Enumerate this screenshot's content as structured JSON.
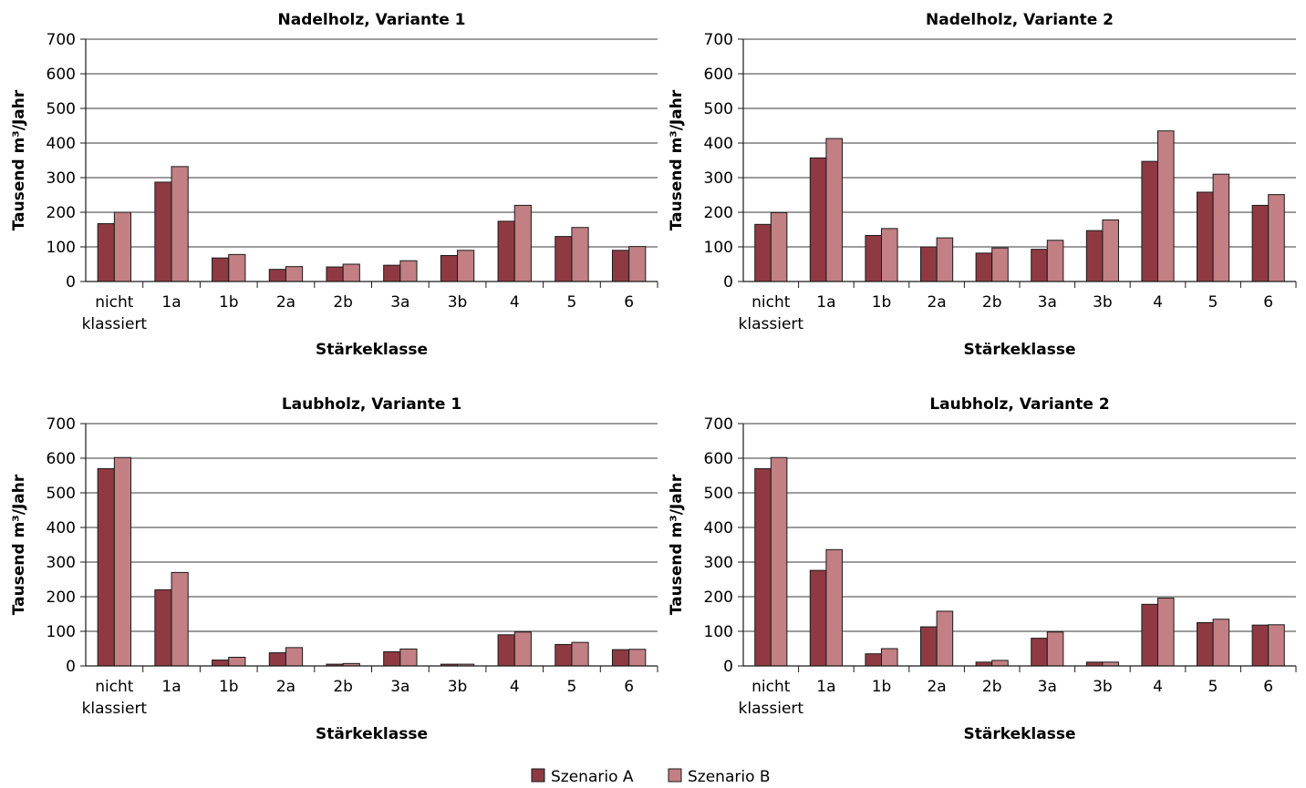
{
  "colors": {
    "series_a": "#8f3a43",
    "series_b": "#c27f84",
    "grid": "#3a3a3a"
  },
  "legend": [
    {
      "label": "Szenario A",
      "color": "#8f3a43"
    },
    {
      "label": "Szenario B",
      "color": "#c27f84"
    }
  ],
  "chart_data": [
    {
      "type": "bar",
      "title": "Nadelholz, Variante 1",
      "xlabel": "Stärkeklasse",
      "ylabel": "Tausend m³/Jahr",
      "ylim": [
        0,
        700
      ],
      "yticks": [
        0,
        100,
        200,
        300,
        400,
        500,
        600,
        700
      ],
      "grid": true,
      "categories": [
        "nicht klassiert",
        "1a",
        "1b",
        "2a",
        "2b",
        "3a",
        "3b",
        "4",
        "5",
        "6"
      ],
      "series": [
        {
          "name": "Szenario A",
          "values": [
            167,
            287,
            68,
            35,
            42,
            47,
            75,
            174,
            130,
            90
          ]
        },
        {
          "name": "Szenario B",
          "values": [
            200,
            332,
            78,
            43,
            50,
            60,
            90,
            220,
            156,
            101
          ]
        }
      ]
    },
    {
      "type": "bar",
      "title": "Nadelholz, Variante 2",
      "xlabel": "Stärkeklasse",
      "ylabel": "Tausend m³/Jahr",
      "ylim": [
        0,
        700
      ],
      "yticks": [
        0,
        100,
        200,
        300,
        400,
        500,
        600,
        700
      ],
      "grid": true,
      "categories": [
        "nicht klassiert",
        "1a",
        "1b",
        "2a",
        "2b",
        "3a",
        "3b",
        "4",
        "5",
        "6"
      ],
      "series": [
        {
          "name": "Szenario A",
          "values": [
            165,
            357,
            133,
            100,
            82,
            93,
            147,
            347,
            258,
            220
          ]
        },
        {
          "name": "Szenario B",
          "values": [
            199,
            413,
            153,
            126,
            97,
            119,
            178,
            435,
            310,
            251
          ]
        }
      ]
    },
    {
      "type": "bar",
      "title": "Laubholz, Variante 1",
      "xlabel": "Stärkeklasse",
      "ylabel": "Tausend m³/Jahr",
      "ylim": [
        0,
        700
      ],
      "yticks": [
        0,
        100,
        200,
        300,
        400,
        500,
        600,
        700
      ],
      "grid": true,
      "categories": [
        "nicht klassiert",
        "1a",
        "1b",
        "2a",
        "2b",
        "3a",
        "3b",
        "4",
        "5",
        "6"
      ],
      "series": [
        {
          "name": "Szenario A",
          "values": [
            570,
            220,
            17,
            38,
            5,
            41,
            5,
            90,
            62,
            47
          ]
        },
        {
          "name": "Szenario B",
          "values": [
            602,
            270,
            25,
            53,
            7,
            49,
            5,
            98,
            68,
            48
          ]
        }
      ]
    },
    {
      "type": "bar",
      "title": "Laubholz, Variante 2",
      "xlabel": "Stärkeklasse",
      "ylabel": "Tausend m³/Jahr",
      "ylim": [
        0,
        700
      ],
      "yticks": [
        0,
        100,
        200,
        300,
        400,
        500,
        600,
        700
      ],
      "grid": true,
      "categories": [
        "nicht klassiert",
        "1a",
        "1b",
        "2a",
        "2b",
        "3a",
        "3b",
        "4",
        "5",
        "6"
      ],
      "series": [
        {
          "name": "Szenario A",
          "values": [
            570,
            276,
            35,
            113,
            11,
            80,
            11,
            178,
            125,
            118
          ]
        },
        {
          "name": "Szenario B",
          "values": [
            602,
            336,
            50,
            158,
            16,
            98,
            11,
            196,
            135,
            119
          ]
        }
      ]
    }
  ]
}
